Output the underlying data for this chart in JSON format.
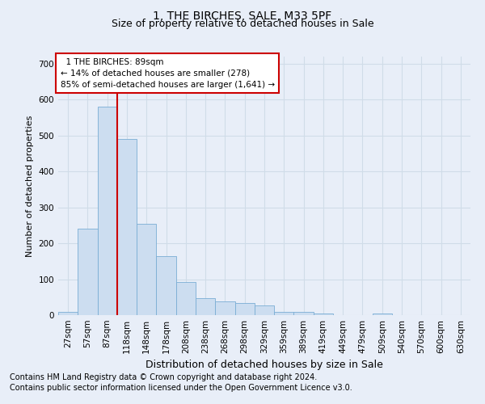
{
  "title": "1, THE BIRCHES, SALE, M33 5PF",
  "subtitle": "Size of property relative to detached houses in Sale",
  "xlabel": "Distribution of detached houses by size in Sale",
  "ylabel": "Number of detached properties",
  "footer_line1": "Contains HM Land Registry data © Crown copyright and database right 2024.",
  "footer_line2": "Contains public sector information licensed under the Open Government Licence v3.0.",
  "annotation_line1": "  1 THE BIRCHES: 89sqm",
  "annotation_line2": "← 14% of detached houses are smaller (278)",
  "annotation_line3": "85% of semi-detached houses are larger (1,641) →",
  "bar_categories": [
    "27sqm",
    "57sqm",
    "87sqm",
    "118sqm",
    "148sqm",
    "178sqm",
    "208sqm",
    "238sqm",
    "268sqm",
    "298sqm",
    "329sqm",
    "359sqm",
    "389sqm",
    "419sqm",
    "449sqm",
    "479sqm",
    "509sqm",
    "540sqm",
    "570sqm",
    "600sqm",
    "630sqm"
  ],
  "bar_values": [
    10,
    240,
    580,
    490,
    255,
    165,
    93,
    48,
    38,
    33,
    28,
    10,
    10,
    5,
    0,
    0,
    4,
    0,
    0,
    0,
    0
  ],
  "bar_color": "#ccddf0",
  "bar_edge_color": "#7aadd4",
  "vline_color": "#cc0000",
  "vline_x": 2.5,
  "ylim": [
    0,
    720
  ],
  "yticks": [
    0,
    100,
    200,
    300,
    400,
    500,
    600,
    700
  ],
  "grid_color": "#d0dce8",
  "background_color": "#e8eef8",
  "annotation_box_facecolor": "#ffffff",
  "annotation_box_edge_color": "#cc0000",
  "title_fontsize": 10,
  "subtitle_fontsize": 9,
  "xlabel_fontsize": 9,
  "ylabel_fontsize": 8,
  "tick_fontsize": 7.5,
  "annotation_fontsize": 7.5,
  "footer_fontsize": 7
}
